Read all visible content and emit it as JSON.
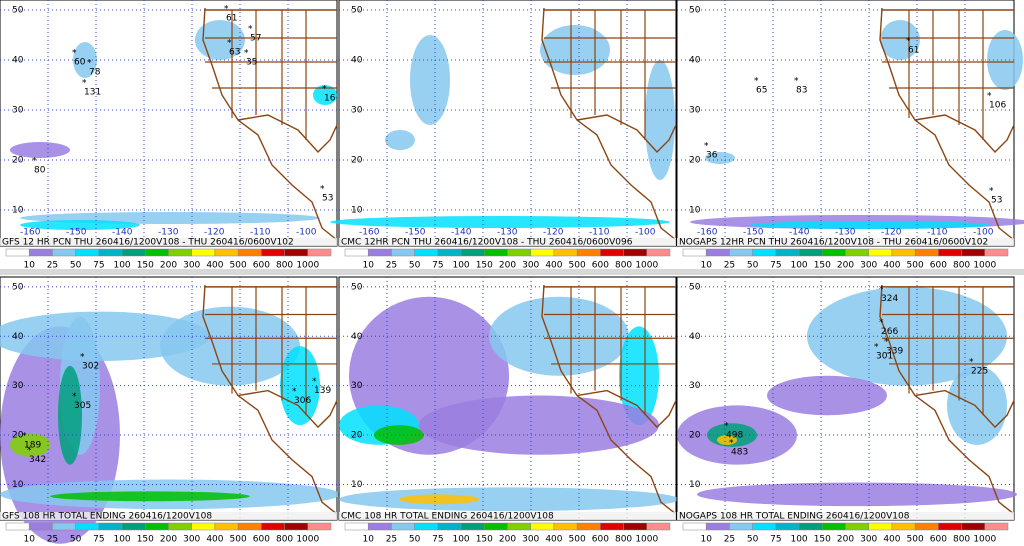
{
  "colorbar": {
    "labels": [
      10,
      25,
      50,
      75,
      100,
      150,
      200,
      300,
      400,
      500,
      600,
      800,
      1000
    ],
    "colors": [
      "#ffffff",
      "#9a7ee0",
      "#86c8f0",
      "#00e0ff",
      "#00b4c8",
      "#00a07c",
      "#00c000",
      "#80d000",
      "#ffff00",
      "#ffc000",
      "#ff8000",
      "#e00000",
      "#a00000",
      "#ff8c8c"
    ]
  },
  "panels": [
    {
      "caption": "GFS 12 HR PCN THU 260416/1200V108 - THU 260416/0600V102",
      "lat_labels": [
        50,
        40,
        30,
        20,
        10
      ],
      "lon_labels": [
        -160,
        -150,
        -140,
        -130,
        -120,
        -110,
        -100
      ],
      "points": [
        "61",
        "57",
        "63",
        "35",
        "60",
        "78",
        "131",
        "80",
        "16",
        "53"
      ]
    },
    {
      "caption": "CMC 12HR PCN THU 260416/1200V108 - THU 260416/0600V096",
      "lat_labels": [
        50,
        40,
        30,
        20,
        10
      ],
      "lon_labels": [
        -160,
        -150,
        -140,
        -130,
        -120,
        -110,
        -100
      ],
      "points": []
    },
    {
      "caption": "NOGAPS 12HR PCN THU 260416/1200V108 - THU 260416/0600V102",
      "lat_labels": [
        50,
        40,
        30,
        20,
        10
      ],
      "lon_labels": [
        -160,
        -150,
        -140,
        -130,
        -120,
        -110,
        -100
      ],
      "points": [
        "61",
        "65",
        "83",
        "36",
        "106",
        "53"
      ]
    },
    {
      "caption": "GFS 108 HR TOTAL ENDING 260416/1200V108",
      "lat_labels": [
        50,
        40,
        30,
        20,
        10
      ],
      "lon_labels": [],
      "points": [
        "302",
        "305",
        "189",
        "342",
        "306",
        "139"
      ]
    },
    {
      "caption": "CMC 108 HR TOTAL ENDING 260416/1200V108",
      "lat_labels": [
        50,
        40,
        30,
        20,
        10
      ],
      "lon_labels": [],
      "points": []
    },
    {
      "caption": "NOGAPS 108 HR TOTAL ENDING 260416/1200V108",
      "lat_labels": [
        50,
        40,
        30,
        20,
        10
      ],
      "lon_labels": [],
      "points": [
        "324",
        "266",
        "339",
        "301",
        "498",
        "483",
        "225"
      ]
    }
  ]
}
